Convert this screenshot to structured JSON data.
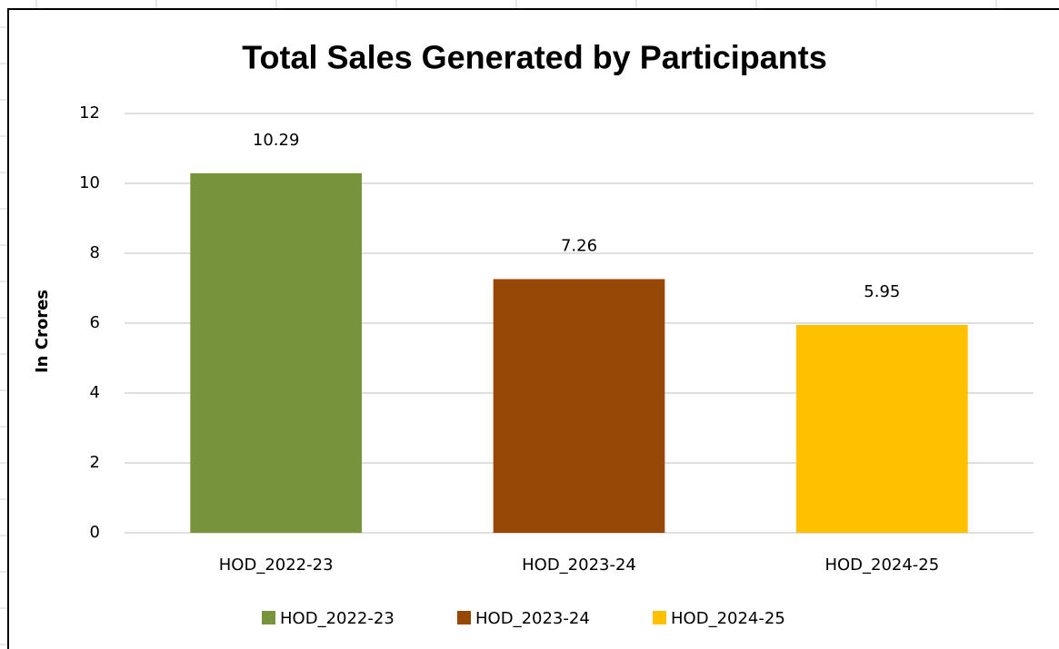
{
  "chart_data": {
    "type": "bar",
    "title": "Total Sales Generated by Participants",
    "y_label": "In Crores",
    "categories": [
      "HOD_2022-23",
      "HOD_2023-24",
      "HOD_2024-25"
    ],
    "values": [
      10.29,
      7.26,
      5.95
    ],
    "colors": [
      "#77933c",
      "#974706",
      "#ffc000"
    ],
    "ylim": [
      0,
      12
    ],
    "yticks": [
      0,
      2,
      4,
      6,
      8,
      10,
      12
    ],
    "grid": true,
    "legend": "bottom"
  }
}
